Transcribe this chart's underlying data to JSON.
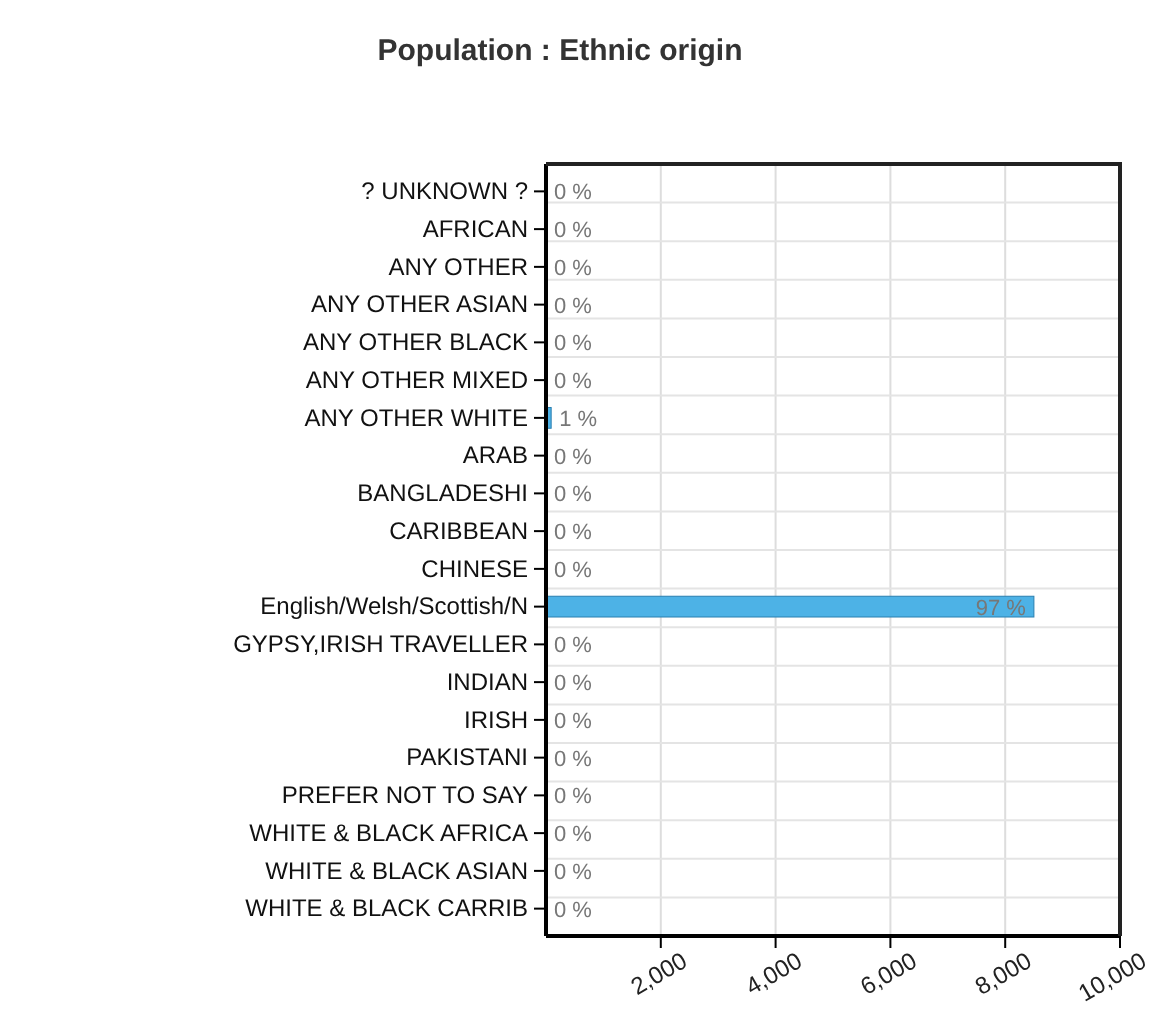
{
  "chart_data": {
    "type": "bar",
    "orientation": "horizontal",
    "title": "Population : Ethnic origin",
    "categories": [
      "? UNKNOWN ?",
      "AFRICAN",
      "ANY OTHER",
      "ANY OTHER ASIAN",
      "ANY OTHER BLACK",
      "ANY OTHER MIXED",
      "ANY OTHER WHITE",
      "ARAB",
      "BANGLADESHI",
      "CARIBBEAN",
      "CHINESE",
      "English/Welsh/Scottish/N",
      "GYPSY,IRISH TRAVELLER",
      "INDIAN",
      "IRISH",
      "PAKISTANI",
      "PREFER NOT TO SAY",
      "WHITE & BLACK AFRICA",
      "WHITE & BLACK ASIAN",
      "WHITE & BLACK CARRIB"
    ],
    "values": [
      0,
      0,
      0,
      0,
      0,
      0,
      90,
      0,
      0,
      0,
      0,
      8500,
      0,
      0,
      0,
      0,
      0,
      0,
      0,
      0
    ],
    "annotations": [
      {
        "text": "0 %",
        "x": 0,
        "y": "? UNKNOWN ?"
      },
      {
        "text": "0 %",
        "x": 0,
        "y": "AFRICAN"
      },
      {
        "text": "0 %",
        "x": 0,
        "y": "ANY OTHER"
      },
      {
        "text": "0 %",
        "x": 0,
        "y": "ANY OTHER ASIAN"
      },
      {
        "text": "0 %",
        "x": 0,
        "y": "ANY OTHER BLACK"
      },
      {
        "text": "0 %",
        "x": 0,
        "y": "ANY OTHER MIXED"
      },
      {
        "text": "1 %",
        "x": 90,
        "y": "ANY OTHER WHITE"
      },
      {
        "text": "0 %",
        "x": 0,
        "y": "ARAB"
      },
      {
        "text": "0 %",
        "x": 0,
        "y": "BANGLADESHI"
      },
      {
        "text": "0 %",
        "x": 0,
        "y": "CARIBBEAN"
      },
      {
        "text": "0 %",
        "x": 0,
        "y": "CHINESE"
      },
      {
        "text": "97 %",
        "x": 8500,
        "y": "English/Welsh/Scottish/N"
      },
      {
        "text": "0 %",
        "x": 0,
        "y": "GYPSY,IRISH TRAVELLER"
      },
      {
        "text": "0 %",
        "x": 0,
        "y": "INDIAN"
      },
      {
        "text": "0 %",
        "x": 0,
        "y": "IRISH"
      },
      {
        "text": "0 %",
        "x": 0,
        "y": "PAKISTANI"
      },
      {
        "text": "0 %",
        "x": 0,
        "y": "PREFER NOT TO SAY"
      },
      {
        "text": "0 %",
        "x": 0,
        "y": "WHITE & BLACK AFRICA"
      },
      {
        "text": "0 %",
        "x": 0,
        "y": "WHITE & BLACK ASIAN"
      },
      {
        "text": "0 %",
        "x": 0,
        "y": "WHITE & BLACK CARRIB"
      }
    ],
    "color": "#4db2e6",
    "xlim": [
      0,
      10000
    ],
    "xticks": [
      {
        "value": 2000,
        "label": "2,000"
      },
      {
        "value": 4000,
        "label": "4,000"
      },
      {
        "value": 6000,
        "label": "6,000"
      },
      {
        "value": 8000,
        "label": "8,000"
      },
      {
        "value": 10000,
        "label": "10,000"
      }
    ],
    "grid": true
  }
}
